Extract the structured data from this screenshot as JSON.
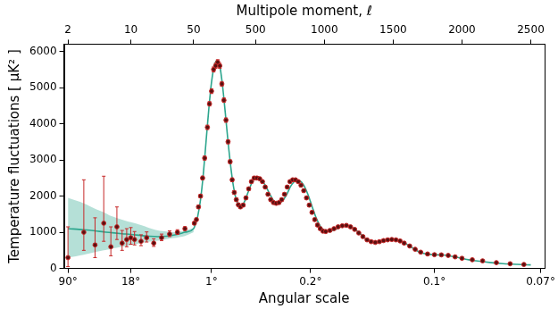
{
  "chart_data": {
    "type": "scatter",
    "x_label": "Multipole moment, ℓ",
    "x2_label": "Angular scale",
    "y_label": "Temperature fluctuations [ μK² ]",
    "log": "x",
    "grid": false,
    "xlim": [
      1.8,
      2600
    ],
    "xticks": [
      2,
      10,
      50,
      500,
      1000,
      1500,
      2000,
      2500
    ],
    "x2ticks": [
      {
        "value": 90,
        "label": "90°"
      },
      {
        "value": 18,
        "label": "18°"
      },
      {
        "value": 1,
        "label": "1°"
      },
      {
        "value": 0.2,
        "label": "0.2°"
      },
      {
        "value": 0.1,
        "label": "0.1°"
      },
      {
        "value": 0.07,
        "label": "0.07°"
      }
    ],
    "ylim": [
      0,
      6200
    ],
    "yticks": [
      0,
      1000,
      2000,
      3000,
      4000,
      5000,
      6000
    ],
    "series": [
      {
        "type": "line",
        "color": "#2ca58d",
        "line_style": "solid",
        "x": [
          2,
          3,
          4,
          5,
          6,
          8,
          10,
          13,
          16,
          20,
          25,
          30,
          40,
          50,
          65,
          80,
          100,
          120,
          140,
          160,
          180,
          200,
          220,
          240,
          260,
          280,
          300,
          320,
          340,
          360,
          380,
          400,
          420,
          450,
          480,
          510,
          540,
          570,
          600,
          630,
          660,
          690,
          720,
          760,
          800,
          820,
          850,
          880,
          910,
          940,
          970,
          1000,
          1030,
          1060,
          1100,
          1140,
          1180,
          1220,
          1260,
          1300,
          1340,
          1380,
          1420,
          1460,
          1500,
          1540,
          1580,
          1620,
          1660,
          1700,
          1750,
          1800,
          1850,
          1900,
          1950,
          2000,
          2050,
          2100,
          2200,
          2300,
          2400,
          2500
        ],
        "values": [
          1100,
          1070,
          1040,
          1010,
          990,
          960,
          940,
          910,
          890,
          880,
          890,
          920,
          1000,
          1100,
          1250,
          1450,
          1900,
          2600,
          3500,
          4400,
          5150,
          5600,
          5750,
          5600,
          5050,
          4300,
          3500,
          2800,
          2250,
          1900,
          1750,
          1720,
          1850,
          2150,
          2420,
          2510,
          2470,
          2300,
          2080,
          1880,
          1800,
          1850,
          2000,
          2300,
          2440,
          2430,
          2300,
          2050,
          1720,
          1400,
          1170,
          1050,
          1020,
          1050,
          1110,
          1170,
          1170,
          1090,
          960,
          820,
          740,
          720,
          745,
          785,
          800,
          780,
          710,
          620,
          520,
          440,
          395,
          380,
          372,
          355,
          318,
          278,
          240,
          212,
          165,
          132,
          112,
          98
        ],
        "band": {
          "x": [
            2,
            3,
            4,
            5,
            6,
            8,
            10,
            13,
            16,
            20,
            25,
            30,
            40,
            50
          ],
          "low": [
            300,
            380,
            450,
            500,
            540,
            600,
            650,
            700,
            740,
            770,
            810,
            840,
            900,
            1000
          ],
          "high": [
            1950,
            1800,
            1650,
            1550,
            1450,
            1350,
            1280,
            1200,
            1120,
            1050,
            1020,
            1000,
            1050,
            1120
          ]
        }
      },
      {
        "type": "scatter",
        "color": "#c62828",
        "marker": "circle",
        "x": [
          2,
          3,
          4,
          5,
          6,
          7,
          8,
          9,
          10,
          11,
          13,
          15,
          18,
          22,
          27,
          33,
          40,
          55,
          70,
          85,
          100,
          115,
          130,
          150,
          165,
          180,
          195,
          210,
          225,
          240,
          255,
          270,
          285,
          300,
          315,
          330,
          345,
          360,
          375,
          390,
          410,
          430,
          450,
          470,
          490,
          510,
          530,
          550,
          570,
          590,
          610,
          630,
          650,
          670,
          690,
          710,
          730,
          750,
          770,
          790,
          810,
          830,
          850,
          870,
          890,
          910,
          930,
          950,
          970,
          990,
          1010,
          1040,
          1070,
          1100,
          1130,
          1160,
          1190,
          1220,
          1250,
          1280,
          1310,
          1340,
          1370,
          1400,
          1430,
          1460,
          1490,
          1520,
          1550,
          1580,
          1620,
          1660,
          1700,
          1750,
          1800,
          1850,
          1900,
          1950,
          2000,
          2075,
          2150,
          2250,
          2350,
          2450
        ],
        "values": [
          300,
          1000,
          650,
          1250,
          600,
          1150,
          700,
          800,
          850,
          800,
          750,
          850,
          700,
          850,
          950,
          1000,
          1100,
          1250,
          1350,
          1700,
          2000,
          2500,
          3050,
          3900,
          4550,
          4900,
          5500,
          5600,
          5700,
          5600,
          5100,
          4650,
          4100,
          3500,
          2950,
          2450,
          2100,
          1900,
          1760,
          1700,
          1750,
          1950,
          2200,
          2400,
          2500,
          2500,
          2480,
          2400,
          2250,
          2050,
          1900,
          1820,
          1800,
          1820,
          1900,
          2050,
          2250,
          2400,
          2450,
          2450,
          2400,
          2300,
          2150,
          1950,
          1750,
          1550,
          1350,
          1200,
          1100,
          1030,
          1020,
          1050,
          1100,
          1150,
          1180,
          1190,
          1150,
          1080,
          980,
          880,
          790,
          740,
          720,
          740,
          770,
          790,
          800,
          790,
          760,
          700,
          620,
          530,
          450,
          400,
          380,
          375,
          360,
          320,
          280,
          240,
          210,
          160,
          130,
          110
        ],
        "error_minus": [
          250,
          500,
          350,
          500,
          250,
          350,
          200,
          200,
          180,
          150,
          120,
          120,
          90,
          80,
          70,
          60,
          50,
          40,
          40,
          40,
          45,
          50,
          55,
          60,
          60,
          65,
          70,
          70,
          70,
          70,
          65,
          60,
          60,
          55,
          50,
          50,
          45,
          45,
          40,
          40,
          40,
          40,
          40,
          40,
          40,
          40,
          40,
          40,
          40,
          40,
          40,
          40,
          40,
          40,
          40,
          40,
          40,
          40,
          40,
          40,
          40,
          40,
          40,
          40,
          40,
          40,
          40,
          40,
          40,
          40,
          30,
          30,
          30,
          30,
          30,
          30,
          30,
          30,
          30,
          30,
          30,
          30,
          30,
          30,
          30,
          30,
          30,
          30,
          30,
          30,
          25,
          25,
          20,
          20,
          20,
          20,
          20,
          20,
          20,
          15,
          15,
          15,
          15,
          15
        ],
        "error_plus": [
          850,
          1450,
          750,
          1300,
          550,
          550,
          350,
          300,
          280,
          220,
          180,
          160,
          120,
          100,
          90,
          70,
          55,
          40,
          40,
          40,
          45,
          50,
          55,
          60,
          60,
          65,
          70,
          70,
          70,
          70,
          65,
          60,
          60,
          55,
          50,
          50,
          45,
          45,
          40,
          40,
          40,
          40,
          40,
          40,
          40,
          40,
          40,
          40,
          40,
          40,
          40,
          40,
          40,
          40,
          40,
          40,
          40,
          40,
          40,
          40,
          40,
          40,
          40,
          40,
          40,
          40,
          40,
          40,
          40,
          40,
          30,
          30,
          30,
          30,
          30,
          30,
          30,
          30,
          30,
          30,
          30,
          30,
          30,
          30,
          30,
          30,
          30,
          30,
          30,
          30,
          25,
          25,
          20,
          20,
          20,
          20,
          20,
          20,
          20,
          15,
          15,
          15,
          15,
          15
        ]
      }
    ]
  }
}
